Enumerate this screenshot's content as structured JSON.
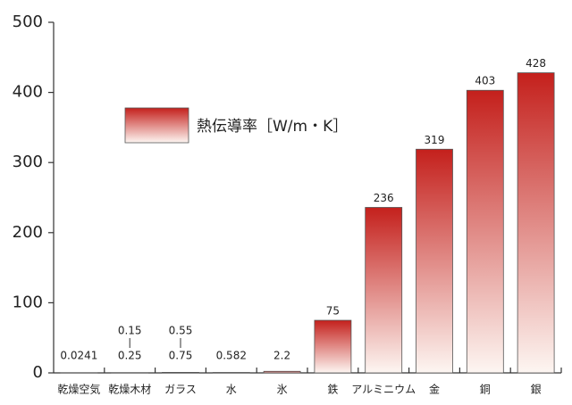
{
  "chart_data": {
    "type": "bar",
    "categories": [
      "乾燥空気",
      "乾燥木材",
      "ガラス",
      "水",
      "氷",
      "鉄",
      "アルミニウム",
      "金",
      "銅",
      "銀"
    ],
    "series": [
      {
        "name": "熱伝導率［W/m・K］",
        "color": "#c4201c",
        "values": [
          0.0241,
          0.25,
          0.75,
          0.582,
          2.2,
          75,
          236,
          319,
          403,
          428
        ],
        "range_low": [
          null,
          0.15,
          0.55,
          null,
          null,
          null,
          null,
          null,
          null,
          null
        ]
      }
    ],
    "ylim": [
      0,
      500
    ],
    "yticks": [
      0,
      100,
      200,
      300,
      400,
      500
    ],
    "legend": "upper-left"
  }
}
